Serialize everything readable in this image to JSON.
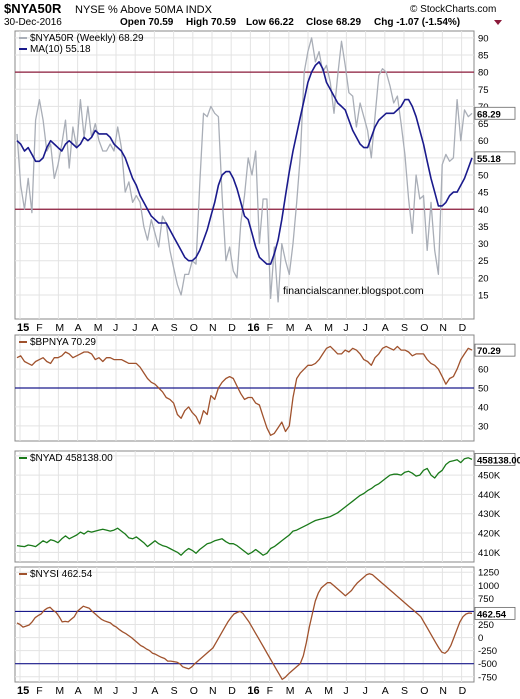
{
  "header": {
    "symbol": "$NYA50R",
    "description": "NYSE % Above 50MA INDX",
    "date": "30-Dec-2016",
    "source": "© StockCharts.com",
    "open": "Open 70.59",
    "high": "High 70.59",
    "low": "Low 66.22",
    "close": "Close 68.29",
    "chg": "Chg -1.07 (-1.54%)"
  },
  "watermark": "financialscanner.blogspot.com",
  "x_axis": {
    "months": [
      "15",
      "F",
      "M",
      "A",
      "M",
      "J",
      "J",
      "A",
      "S",
      "O",
      "N",
      "D",
      "16",
      "F",
      "M",
      "A",
      "M",
      "J",
      "J",
      "A",
      "S",
      "O",
      "N",
      "D"
    ]
  },
  "colors": {
    "gray_line": "#a9aeb7",
    "ma_line": "#1a1a8c",
    "brown_line": "#a0522d",
    "green_line": "#1a7a1a",
    "ref_red": "#8b1a3a",
    "ref_blue": "#1a1a8c",
    "grid": "#e3e3e3"
  },
  "chart_data": [
    {
      "type": "line",
      "name": "NYA50R",
      "legend": [
        "$NYA50R (Weekly) 68.29",
        "MA(10) 55.18"
      ],
      "ylim": [
        8,
        92
      ],
      "y_ticks": [
        15,
        20,
        25,
        30,
        35,
        40,
        45,
        50,
        55,
        60,
        65,
        70,
        75,
        80,
        85,
        90
      ],
      "ref_lines": [
        80,
        40
      ],
      "last_labels": [
        "68.29",
        "55.18"
      ],
      "series": [
        {
          "name": "$NYA50R (Weekly)",
          "values": [
            62,
            47,
            40,
            49,
            39,
            66,
            72,
            66,
            57,
            59,
            49,
            53,
            59,
            66,
            52,
            64,
            58,
            72,
            61,
            70,
            61,
            65,
            60,
            57,
            57,
            59,
            57,
            64,
            58,
            45,
            48,
            42,
            44,
            42,
            35,
            31,
            37,
            33,
            29,
            38,
            36,
            28,
            23,
            18,
            15,
            21,
            21,
            25,
            24,
            47,
            68,
            67,
            70,
            68,
            67,
            44,
            25,
            29,
            22,
            20,
            36,
            44,
            55,
            50,
            57,
            30,
            43,
            43,
            14,
            29,
            13,
            30,
            25,
            21,
            30,
            42,
            56,
            80,
            86,
            90,
            83,
            86,
            80,
            82,
            77,
            68,
            79,
            89,
            82,
            74,
            73,
            64,
            71,
            67,
            63,
            55,
            67,
            79,
            81,
            80,
            76,
            71,
            73,
            65,
            56,
            43,
            33,
            50,
            43,
            44,
            28,
            42,
            28,
            21,
            53,
            56,
            54,
            55,
            72,
            60,
            69,
            67,
            68
          ]
        },
        {
          "name": "MA(10)",
          "values": [
            60,
            59,
            57,
            58,
            56,
            54,
            54,
            55,
            58,
            60,
            59,
            58,
            57,
            59,
            60,
            59,
            58,
            59,
            61,
            60,
            61,
            63,
            62,
            62,
            62,
            61,
            59,
            58,
            57,
            55,
            52,
            49,
            47,
            44,
            42,
            40,
            38,
            37,
            36,
            36,
            36,
            34,
            32,
            30,
            28,
            26,
            25,
            25,
            26,
            28,
            31,
            34,
            38,
            42,
            47,
            50,
            51,
            51,
            49,
            46,
            42,
            38,
            37,
            33,
            29,
            26,
            25,
            24,
            24,
            27,
            31,
            37,
            44,
            51,
            57,
            62,
            67,
            72,
            77,
            80,
            82,
            83,
            81,
            77,
            75,
            73,
            71,
            70,
            69,
            66,
            63,
            61,
            59,
            58,
            58,
            61,
            64,
            66,
            67,
            68,
            68,
            68,
            69,
            70,
            72,
            72,
            70,
            67,
            63,
            59,
            54,
            49,
            45,
            41,
            41,
            42,
            44,
            45,
            45,
            47,
            49,
            52,
            55
          ]
        }
      ]
    },
    {
      "type": "line",
      "name": "BPNYA",
      "legend": [
        "$BPNYA 70.29"
      ],
      "ylim": [
        22,
        78
      ],
      "y_ticks": [
        30,
        40,
        50,
        60,
        70
      ],
      "ref_lines": [
        50
      ],
      "last_labels": [
        "70.29"
      ],
      "series": [
        {
          "name": "$BPNYA",
          "values": [
            66,
            67,
            64,
            63,
            62,
            64,
            65,
            66,
            64,
            63,
            66,
            66,
            67,
            69,
            68,
            66,
            67,
            68,
            69,
            69,
            68,
            65,
            66,
            64,
            66,
            66,
            65,
            65,
            65,
            64,
            63,
            63,
            63,
            61,
            58,
            55,
            53,
            52,
            50,
            48,
            45,
            44,
            42,
            36,
            34,
            38,
            40,
            37,
            35,
            31,
            38,
            36,
            46,
            44,
            50,
            53,
            55,
            56,
            55,
            51,
            47,
            44,
            45,
            45,
            42,
            41,
            35,
            29,
            25,
            26,
            29,
            32,
            27,
            30,
            45,
            55,
            58,
            60,
            62,
            62,
            63,
            65,
            68,
            71,
            72,
            70,
            68,
            68,
            70,
            69,
            71,
            70,
            68,
            65,
            64,
            62,
            66,
            68,
            71,
            72,
            71,
            70,
            72,
            70,
            70,
            69,
            67,
            68,
            68,
            68,
            65,
            63,
            62,
            60,
            56,
            52,
            55,
            56,
            60,
            65,
            68,
            71,
            70
          ]
        }
      ]
    },
    {
      "type": "line",
      "name": "NYAD",
      "legend": [
        "$NYAD 458138.00"
      ],
      "ylim": [
        405000,
        462500
      ],
      "y_ticks": [
        410000,
        420000,
        430000,
        440000,
        450000,
        460000
      ],
      "y_tick_labels": [
        "410K",
        "420K",
        "430K",
        "440K",
        "450K",
        "460K"
      ],
      "last_labels": [
        "458138.00"
      ],
      "series": [
        {
          "name": "$NYAD",
          "values": [
            413500,
            413200,
            413000,
            413800,
            413500,
            413000,
            414500,
            416000,
            415000,
            416500,
            416000,
            415000,
            417000,
            418500,
            417000,
            418000,
            419000,
            420500,
            419500,
            421000,
            420500,
            421000,
            421500,
            422000,
            421500,
            421000,
            421500,
            422500,
            421000,
            419500,
            417500,
            417000,
            418000,
            416500,
            415000,
            413000,
            414500,
            416000,
            414500,
            413500,
            413000,
            412000,
            411000,
            410000,
            408500,
            410500,
            412000,
            411000,
            409500,
            411500,
            413000,
            414500,
            415000,
            416000,
            416500,
            417000,
            415500,
            414500,
            414500,
            413500,
            412000,
            410500,
            409000,
            410000,
            411500,
            410000,
            408500,
            409500,
            412000,
            413000,
            414500,
            416000,
            417500,
            419000,
            421000,
            421500,
            422500,
            423500,
            424500,
            425500,
            426500,
            427000,
            427500,
            428000,
            428500,
            429500,
            430500,
            432000,
            433500,
            435000,
            436500,
            438000,
            439500,
            440500,
            442000,
            443000,
            444500,
            445500,
            447000,
            448500,
            450000,
            450500,
            450500,
            450000,
            451500,
            452000,
            451000,
            449500,
            450000,
            452500,
            453500,
            450000,
            448500,
            451000,
            452500,
            455500,
            457000,
            457500,
            458000,
            456500,
            458500,
            459000,
            458138
          ]
        }
      ]
    },
    {
      "type": "line",
      "name": "NYSI",
      "legend": [
        "$NYSI 462.54"
      ],
      "ylim": [
        -850,
        1350
      ],
      "y_ticks": [
        -750,
        -500,
        -250,
        0,
        250,
        500,
        750,
        1000,
        1250
      ],
      "ref_lines": [
        500,
        -500
      ],
      "last_labels": [
        "462.54"
      ],
      "series": [
        {
          "name": "$NYSI",
          "values": [
            280,
            250,
            200,
            220,
            240,
            300,
            380,
            420,
            450,
            520,
            560,
            580,
            520,
            480,
            400,
            300,
            310,
            300,
            350,
            400,
            500,
            550,
            600,
            580,
            560,
            500,
            450,
            400,
            350,
            320,
            300,
            280,
            230,
            200,
            150,
            110,
            80,
            40,
            0,
            -50,
            -100,
            -150,
            -180,
            -220,
            -250,
            -300,
            -320,
            -350,
            -380,
            -400,
            -450,
            -450,
            -460,
            -470,
            -500,
            -560,
            -580,
            -600,
            -560,
            -500,
            -450,
            -400,
            -350,
            -300,
            -250,
            -200,
            -100,
            0,
            100,
            200,
            300,
            380,
            450,
            480,
            500,
            460,
            380,
            300,
            200,
            100,
            0,
            -100,
            -200,
            -300,
            -400,
            -500,
            -600,
            -700,
            -800,
            -760,
            -700,
            -650,
            -600,
            -550,
            -500,
            -350,
            -100,
            200,
            450,
            700,
            850,
            950,
            1000,
            1050,
            1050,
            1000,
            950,
            900,
            850,
            800,
            850,
            900,
            980,
            1050,
            1100,
            1150,
            1200,
            1220,
            1200,
            1150,
            1100,
            1050,
            1000,
            950,
            900,
            850,
            800,
            750,
            700,
            650,
            600,
            550,
            500,
            450,
            400,
            300,
            200,
            100,
            0,
            -100,
            -200,
            -280,
            -300,
            -250,
            -150,
            0,
            150,
            300,
            400,
            450,
            470,
            462.54
          ]
        }
      ]
    }
  ]
}
